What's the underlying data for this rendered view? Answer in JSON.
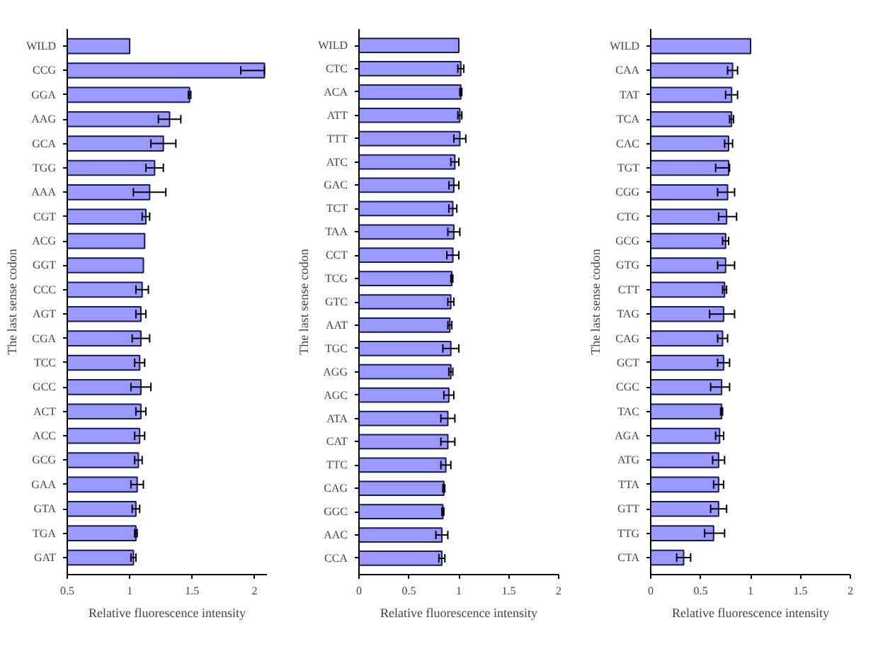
{
  "chart_data": [
    {
      "type": "bar",
      "orientation": "horizontal",
      "ylabel": "The last sense codon",
      "xlabel": "Relative fluorescence intensity",
      "xlim": [
        0.5,
        2.1
      ],
      "xticks": [
        0.5,
        1,
        1.5,
        2
      ],
      "color": "#9999ff",
      "grid": false,
      "categories": [
        "WILD",
        "CCG",
        "GGA",
        "AAG",
        "GCA",
        "TGG",
        "AAA",
        "CGT",
        "ACG",
        "GGT",
        "CCC",
        "AGT",
        "CGA",
        "TCC",
        "GCC",
        "ACT",
        "ACC",
        "GCG",
        "GAA",
        "GTA",
        "TGA",
        "GAT"
      ],
      "values": [
        1.0,
        2.08,
        1.48,
        1.32,
        1.27,
        1.2,
        1.16,
        1.13,
        1.12,
        1.11,
        1.1,
        1.09,
        1.09,
        1.08,
        1.09,
        1.09,
        1.08,
        1.07,
        1.06,
        1.05,
        1.05,
        1.03
      ],
      "errors": [
        null,
        [
          1.89,
          2.08
        ],
        0.01,
        0.09,
        0.1,
        0.07,
        0.13,
        0.03,
        null,
        null,
        0.05,
        0.04,
        0.07,
        0.04,
        0.08,
        0.04,
        0.04,
        0.03,
        0.05,
        0.03,
        0.01,
        0.02
      ]
    },
    {
      "type": "bar",
      "orientation": "horizontal",
      "ylabel": "The last sense codon",
      "xlabel": "Relative fluorescence intensity",
      "xlim": [
        0,
        2
      ],
      "xticks": [
        0,
        0.5,
        1,
        1.5,
        2
      ],
      "color": "#9999ff",
      "grid": false,
      "categories": [
        "WILD",
        "CTC",
        "ACA",
        "ATT",
        "TTT",
        "ATC",
        "GAC",
        "TCT",
        "TAA",
        "CCT",
        "TCG",
        "GTC",
        "AAT",
        "TGC",
        "AGG",
        "AGC",
        "ATA",
        "CAT",
        "TTC",
        "CAG",
        "GGC",
        "AAC",
        "CCA"
      ],
      "values": [
        1.0,
        1.02,
        1.02,
        1.01,
        1.01,
        0.96,
        0.95,
        0.94,
        0.95,
        0.94,
        0.93,
        0.92,
        0.91,
        0.92,
        0.92,
        0.9,
        0.89,
        0.89,
        0.87,
        0.85,
        0.84,
        0.83,
        0.83
      ],
      "errors": [
        null,
        0.03,
        0.01,
        0.02,
        0.06,
        0.04,
        0.05,
        0.04,
        0.06,
        0.06,
        0.01,
        0.03,
        0.02,
        0.08,
        0.02,
        0.05,
        0.07,
        0.07,
        0.05,
        0.01,
        0.01,
        0.06,
        0.03
      ]
    },
    {
      "type": "bar",
      "orientation": "horizontal",
      "ylabel": "The last sense codon",
      "xlabel": "Relative fluorescence intensity",
      "xlim": [
        0,
        2
      ],
      "xticks": [
        0,
        0.5,
        1,
        1.5,
        2
      ],
      "color": "#9999ff",
      "grid": false,
      "categories": [
        "WILD",
        "CAA",
        "TAT",
        "TCA",
        "CAC",
        "TGT",
        "CGG",
        "CTG",
        "GCG",
        "GTG",
        "CTT",
        "TAG",
        "CAG",
        "GCT",
        "CGC",
        "TAC",
        "AGA",
        "ATG",
        "TTA",
        "GTT",
        "TTG",
        "CTA"
      ],
      "values": [
        1.0,
        0.82,
        0.81,
        0.81,
        0.78,
        0.78,
        0.77,
        0.76,
        0.75,
        0.75,
        0.74,
        0.73,
        0.72,
        0.73,
        0.71,
        0.71,
        0.69,
        0.68,
        0.68,
        0.68,
        0.63,
        0.33
      ],
      "errors": [
        null,
        0.05,
        0.06,
        0.02,
        0.04,
        [
          0.65,
          0.79
        ],
        [
          0.67,
          0.84
        ],
        [
          0.68,
          0.86
        ],
        0.03,
        [
          0.67,
          0.84
        ],
        0.02,
        [
          0.59,
          0.84
        ],
        0.05,
        0.06,
        [
          0.6,
          0.79
        ],
        0.01,
        0.04,
        0.06,
        0.05,
        0.08,
        [
          0.54,
          0.74
        ],
        0.07
      ]
    }
  ]
}
